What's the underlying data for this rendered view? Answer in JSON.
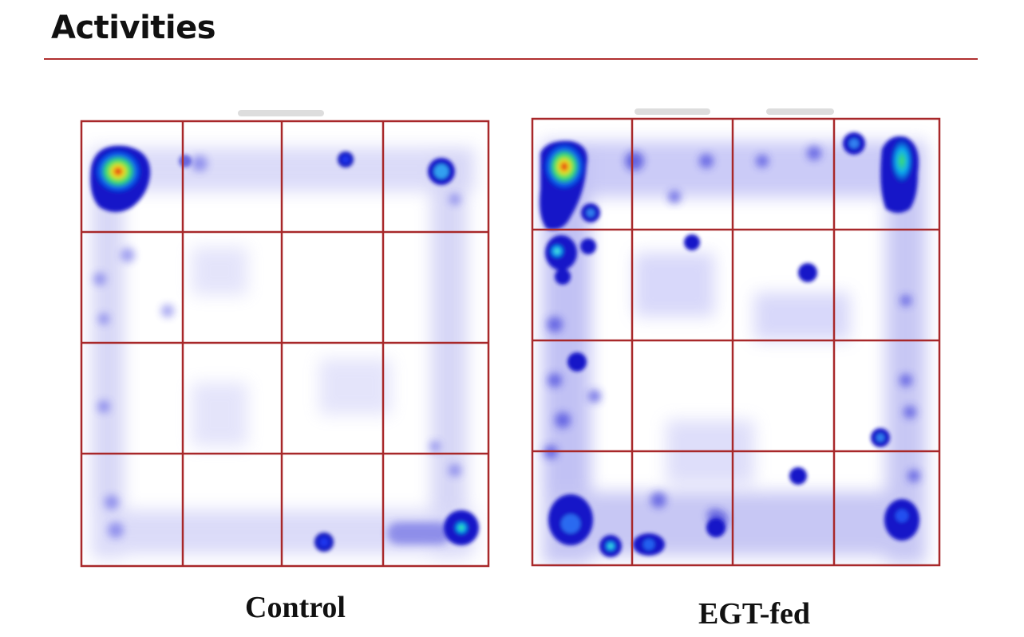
{
  "slide": {
    "title": "Activities"
  },
  "panels": [
    {
      "id": "control",
      "label": "Control"
    },
    {
      "id": "egt",
      "label": "EGT-fed"
    }
  ],
  "colors": {
    "grid": "#a8282a",
    "rule": "#b03030",
    "trail": "#3a3ae0"
  }
}
